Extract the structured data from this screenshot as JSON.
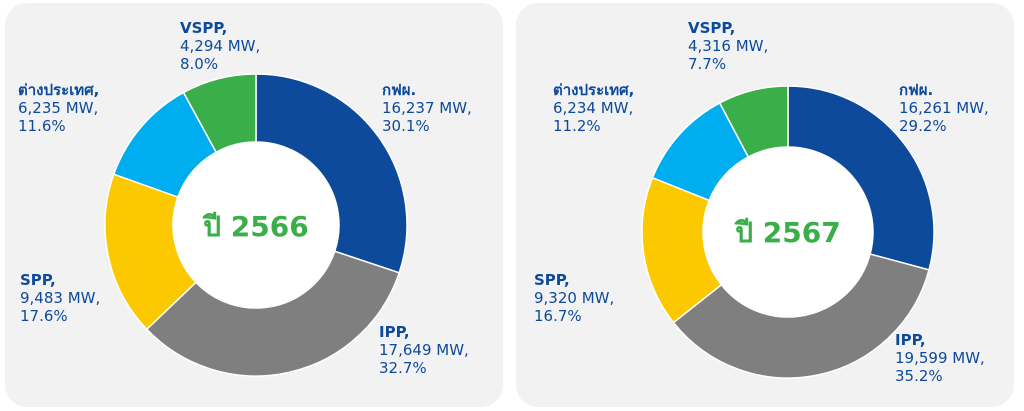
{
  "colors": {
    "egat": "#0d4a9b",
    "ipp": "#7f7f7f",
    "spp": "#fcc800",
    "foreign": "#00adef",
    "vspp": "#3aae49",
    "label": "#0d4a9b",
    "center": "#3aae49"
  },
  "chart_data": [
    {
      "type": "pie",
      "center_label": "ปี 2566",
      "unit": "MW",
      "slices": [
        {
          "name": "กฟผ.",
          "mw": 16237,
          "mw_text": "16,237 MW,",
          "pct": 30.1,
          "pct_text": "30.1%",
          "color_key": "egat"
        },
        {
          "name": "IPP",
          "mw": 17649,
          "mw_text": "17,649 MW,",
          "pct": 32.7,
          "pct_text": "32.7%",
          "color_key": "ipp"
        },
        {
          "name": "SPP,",
          "mw": 9483,
          "mw_text": "9,483 MW,",
          "pct": 17.6,
          "pct_text": "17.6%",
          "color_key": "spp"
        },
        {
          "name": "ต่างประเทศ,",
          "mw": 6235,
          "mw_text": "6,235 MW,",
          "pct": 11.6,
          "pct_text": "11.6%",
          "color_key": "foreign"
        },
        {
          "name": "VSPP,",
          "mw": 4294,
          "mw_text": "4,294 MW,",
          "pct": 8.0,
          "pct_text": "8.0%",
          "color_key": "vspp"
        }
      ]
    },
    {
      "type": "pie",
      "center_label": "ปี 2567",
      "unit": "MW",
      "slices": [
        {
          "name": "กฟผ.",
          "mw": 16261,
          "mw_text": "16,261 MW,",
          "pct": 29.2,
          "pct_text": "29.2%",
          "color_key": "egat"
        },
        {
          "name": "IPP",
          "mw": 19599,
          "mw_text": "19,599 MW,",
          "pct": 35.2,
          "pct_text": "35.2%",
          "color_key": "ipp"
        },
        {
          "name": "SPP,",
          "mw": 9320,
          "mw_text": "9,320 MW,",
          "pct": 16.7,
          "pct_text": "16.7%",
          "color_key": "spp"
        },
        {
          "name": "ต่างประเทศ,",
          "mw": 6234,
          "mw_text": "6,234 MW,",
          "pct": 11.2,
          "pct_text": "11.2%",
          "color_key": "foreign"
        },
        {
          "name": "VSPP,",
          "mw": 4316,
          "mw_text": "4,316 MW,",
          "pct": 7.7,
          "pct_text": "7.7%",
          "color_key": "vspp"
        }
      ]
    }
  ]
}
